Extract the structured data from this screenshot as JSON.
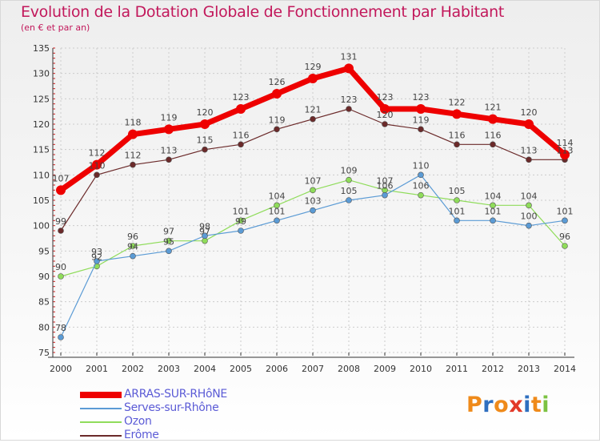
{
  "title": "Evolution de la Dotation Globale de Fonctionnement par Habitant",
  "subtitle": "(en € et par an)",
  "logo": {
    "text": "Proxiti",
    "colors": [
      "#ef8a1a",
      "#2f6fbf",
      "#ef8a1a",
      "#e23a2a",
      "#2f6fbf",
      "#ef8a1a",
      "#7cc242"
    ]
  },
  "colors": {
    "title": "#c2185b",
    "grid": "#cccccc",
    "axis": "#555555",
    "legend_text": "#5b5bd6"
  },
  "chart_data": {
    "type": "line",
    "title": "Evolution de la Dotation Globale de Fonctionnement par Habitant",
    "subtitle": "(en € et par an)",
    "xlabel": "",
    "ylabel": "",
    "ylim": [
      75,
      135
    ],
    "yticks": [
      75,
      80,
      85,
      90,
      95,
      100,
      105,
      110,
      115,
      120,
      125,
      130,
      135
    ],
    "x": [
      "2000",
      "2001",
      "2002",
      "2003",
      "2004",
      "2005",
      "2006",
      "2007",
      "2008",
      "2009",
      "2010",
      "2011",
      "2012",
      "2013",
      "2014"
    ],
    "legend_position": "bottom-left",
    "series": [
      {
        "name": "ARRAS-SUR-RHôNE",
        "color": "#ee0000",
        "width": "thick",
        "values": [
          107,
          112,
          118,
          119,
          120,
          123,
          126,
          129,
          131,
          123,
          123,
          122,
          121,
          120,
          114
        ]
      },
      {
        "name": "Serves-sur-Rhône",
        "color": "#5b9bd5",
        "width": "thin",
        "values": [
          78,
          93,
          94,
          95,
          98,
          99,
          101,
          103,
          105,
          106,
          110,
          101,
          101,
          100,
          101
        ]
      },
      {
        "name": "Ozon",
        "color": "#8fdc5a",
        "width": "thin",
        "values": [
          90,
          92,
          96,
          97,
          97,
          101,
          104,
          107,
          109,
          107,
          106,
          105,
          104,
          104,
          96
        ]
      },
      {
        "name": "Erôme",
        "color": "#6b2a2a",
        "width": "thin",
        "values": [
          99,
          110,
          112,
          113,
          115,
          116,
          119,
          121,
          123,
          120,
          119,
          116,
          116,
          113,
          113
        ]
      }
    ]
  }
}
